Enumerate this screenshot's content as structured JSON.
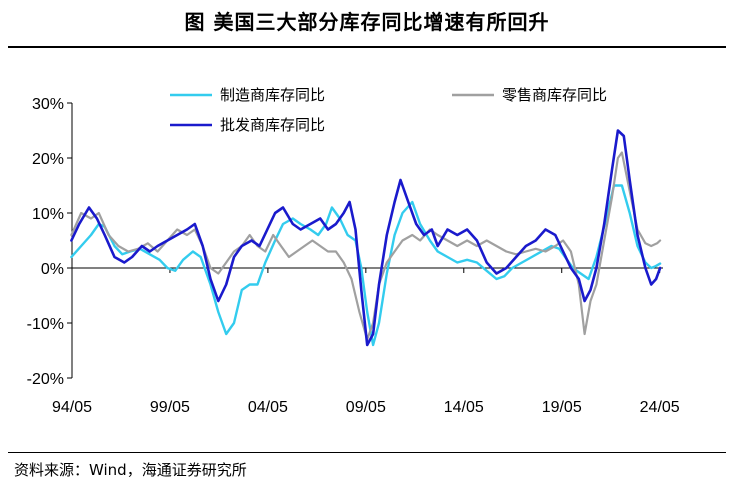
{
  "header": {
    "title": "图  美国三大部分库存同比增速有所回升"
  },
  "footer": {
    "source": "资料来源：Wind，海通证券研究所"
  },
  "colors": {
    "manufacturing": "#33ccee",
    "retail": "#a0a0a0",
    "wholesale": "#1a1acc",
    "axis": "#000000"
  },
  "chart_data": {
    "type": "line",
    "title": "美国三大部分库存同比增速有所回升",
    "xlabel": "",
    "ylabel": "",
    "ylim": [
      -20,
      30
    ],
    "xlim": [
      1994.33,
      2024.5
    ],
    "yticks": [
      -20,
      -10,
      0,
      10,
      20,
      30
    ],
    "ytick_labels": [
      "-20%",
      "-10%",
      "0%",
      "10%",
      "20%",
      "30%"
    ],
    "xticks": [
      1994.33,
      1999.33,
      2004.33,
      2009.33,
      2014.33,
      2019.33,
      2024.33
    ],
    "xtick_labels": [
      "94/05",
      "99/05",
      "04/05",
      "09/05",
      "14/05",
      "19/05",
      "24/05"
    ],
    "grid": false,
    "legend_position": "top",
    "series": [
      {
        "name": "制造商库存同比",
        "color_key": "manufacturing",
        "points": [
          [
            1994.3,
            2
          ],
          [
            1994.8,
            4
          ],
          [
            1995.3,
            6
          ],
          [
            1995.7,
            8
          ],
          [
            1996.0,
            7.5
          ],
          [
            1996.5,
            4
          ],
          [
            1996.9,
            2.5
          ],
          [
            1997.3,
            3
          ],
          [
            1997.8,
            3.5
          ],
          [
            1998.3,
            2.5
          ],
          [
            1998.8,
            1.5
          ],
          [
            1999.2,
            0
          ],
          [
            1999.6,
            -0.5
          ],
          [
            2000.0,
            1.5
          ],
          [
            2000.5,
            3
          ],
          [
            2000.9,
            2
          ],
          [
            2001.4,
            -3
          ],
          [
            2001.8,
            -8
          ],
          [
            2002.2,
            -12
          ],
          [
            2002.6,
            -10
          ],
          [
            2003.0,
            -4
          ],
          [
            2003.4,
            -3
          ],
          [
            2003.8,
            -3
          ],
          [
            2004.2,
            1
          ],
          [
            2004.7,
            5
          ],
          [
            2005.1,
            8
          ],
          [
            2005.6,
            9
          ],
          [
            2006.0,
            8
          ],
          [
            2006.5,
            7
          ],
          [
            2006.9,
            6
          ],
          [
            2007.3,
            8
          ],
          [
            2007.6,
            11
          ],
          [
            2008.0,
            9
          ],
          [
            2008.4,
            6
          ],
          [
            2008.8,
            5
          ],
          [
            2009.1,
            0
          ],
          [
            2009.4,
            -8
          ],
          [
            2009.7,
            -14
          ],
          [
            2010.0,
            -10
          ],
          [
            2010.4,
            -1
          ],
          [
            2010.8,
            6
          ],
          [
            2011.2,
            10
          ],
          [
            2011.7,
            12
          ],
          [
            2012.1,
            8
          ],
          [
            2012.6,
            5
          ],
          [
            2013.0,
            3
          ],
          [
            2013.5,
            2
          ],
          [
            2014.0,
            1
          ],
          [
            2014.5,
            1.5
          ],
          [
            2015.0,
            1
          ],
          [
            2015.5,
            -0.5
          ],
          [
            2016.0,
            -2
          ],
          [
            2016.4,
            -1.5
          ],
          [
            2016.8,
            0
          ],
          [
            2017.3,
            1
          ],
          [
            2017.8,
            2
          ],
          [
            2018.3,
            3
          ],
          [
            2018.8,
            4
          ],
          [
            2019.2,
            3.5
          ],
          [
            2019.5,
            2
          ],
          [
            2019.9,
            0
          ],
          [
            2020.3,
            -1
          ],
          [
            2020.7,
            -2
          ],
          [
            2021.1,
            2
          ],
          [
            2021.6,
            9
          ],
          [
            2022.0,
            15
          ],
          [
            2022.4,
            15
          ],
          [
            2022.8,
            10
          ],
          [
            2023.2,
            4
          ],
          [
            2023.6,
            1
          ],
          [
            2023.9,
            0
          ],
          [
            2024.1,
            0.3
          ],
          [
            2024.35,
            0.8
          ]
        ]
      },
      {
        "name": "零售商库存同比",
        "color_key": "retail",
        "points": [
          [
            1994.3,
            6
          ],
          [
            1994.8,
            10
          ],
          [
            1995.3,
            9
          ],
          [
            1995.7,
            10
          ],
          [
            1996.2,
            6
          ],
          [
            1996.7,
            4
          ],
          [
            1997.2,
            3
          ],
          [
            1997.7,
            3.5
          ],
          [
            1998.2,
            4.5
          ],
          [
            1998.7,
            3
          ],
          [
            1999.2,
            5
          ],
          [
            1999.7,
            7
          ],
          [
            2000.2,
            6
          ],
          [
            2000.6,
            7
          ],
          [
            2001.0,
            4
          ],
          [
            2001.4,
            0
          ],
          [
            2001.8,
            -1
          ],
          [
            2002.2,
            1
          ],
          [
            2002.6,
            3
          ],
          [
            2003.0,
            4
          ],
          [
            2003.4,
            6
          ],
          [
            2003.8,
            4
          ],
          [
            2004.2,
            3
          ],
          [
            2004.6,
            6
          ],
          [
            2005.0,
            4
          ],
          [
            2005.4,
            2
          ],
          [
            2005.8,
            3
          ],
          [
            2006.2,
            4
          ],
          [
            2006.6,
            5
          ],
          [
            2007.0,
            4
          ],
          [
            2007.4,
            3
          ],
          [
            2007.8,
            3
          ],
          [
            2008.2,
            1
          ],
          [
            2008.6,
            -2
          ],
          [
            2009.0,
            -8
          ],
          [
            2009.4,
            -13
          ],
          [
            2009.7,
            -10
          ],
          [
            2010.0,
            -3
          ],
          [
            2010.4,
            1
          ],
          [
            2010.8,
            3
          ],
          [
            2011.2,
            5
          ],
          [
            2011.7,
            6
          ],
          [
            2012.1,
            5
          ],
          [
            2012.6,
            7
          ],
          [
            2013.0,
            6
          ],
          [
            2013.5,
            5
          ],
          [
            2014.0,
            4
          ],
          [
            2014.5,
            5
          ],
          [
            2015.0,
            4
          ],
          [
            2015.5,
            5
          ],
          [
            2016.0,
            4
          ],
          [
            2016.5,
            3
          ],
          [
            2017.0,
            2.5
          ],
          [
            2017.5,
            3
          ],
          [
            2018.0,
            3.5
          ],
          [
            2018.5,
            3
          ],
          [
            2019.0,
            4
          ],
          [
            2019.4,
            5
          ],
          [
            2019.8,
            3
          ],
          [
            2020.2,
            -3
          ],
          [
            2020.5,
            -12
          ],
          [
            2020.8,
            -6
          ],
          [
            2021.1,
            -3
          ],
          [
            2021.5,
            5
          ],
          [
            2021.9,
            13
          ],
          [
            2022.2,
            20
          ],
          [
            2022.4,
            21
          ],
          [
            2022.8,
            14
          ],
          [
            2023.2,
            7
          ],
          [
            2023.6,
            4.5
          ],
          [
            2023.9,
            4
          ],
          [
            2024.2,
            4.5
          ],
          [
            2024.35,
            5
          ]
        ]
      },
      {
        "name": "批发商库存同比",
        "color_key": "wholesale",
        "points": [
          [
            1994.3,
            5
          ],
          [
            1994.7,
            8
          ],
          [
            1995.2,
            11
          ],
          [
            1995.6,
            9
          ],
          [
            1996.0,
            6
          ],
          [
            1996.5,
            2
          ],
          [
            1997.0,
            1
          ],
          [
            1997.4,
            2
          ],
          [
            1997.9,
            4
          ],
          [
            1998.3,
            3
          ],
          [
            1998.7,
            4
          ],
          [
            1999.2,
            5
          ],
          [
            1999.7,
            6
          ],
          [
            2000.2,
            7
          ],
          [
            2000.6,
            8
          ],
          [
            2001.0,
            4
          ],
          [
            2001.4,
            -2
          ],
          [
            2001.8,
            -6
          ],
          [
            2002.2,
            -3
          ],
          [
            2002.6,
            2
          ],
          [
            2003.0,
            4
          ],
          [
            2003.5,
            5
          ],
          [
            2003.9,
            4
          ],
          [
            2004.3,
            7
          ],
          [
            2004.7,
            10
          ],
          [
            2005.1,
            11
          ],
          [
            2005.6,
            8
          ],
          [
            2006.0,
            7
          ],
          [
            2006.5,
            8
          ],
          [
            2007.0,
            9
          ],
          [
            2007.4,
            7
          ],
          [
            2007.8,
            8
          ],
          [
            2008.2,
            10
          ],
          [
            2008.5,
            12
          ],
          [
            2008.8,
            7
          ],
          [
            2009.1,
            -4
          ],
          [
            2009.4,
            -14
          ],
          [
            2009.7,
            -12
          ],
          [
            2010.0,
            -3
          ],
          [
            2010.4,
            6
          ],
          [
            2010.8,
            12
          ],
          [
            2011.1,
            16
          ],
          [
            2011.5,
            12
          ],
          [
            2011.9,
            8
          ],
          [
            2012.3,
            6
          ],
          [
            2012.7,
            7
          ],
          [
            2013.0,
            4
          ],
          [
            2013.5,
            7
          ],
          [
            2014.0,
            6
          ],
          [
            2014.5,
            7
          ],
          [
            2015.0,
            5
          ],
          [
            2015.5,
            1
          ],
          [
            2016.0,
            -1
          ],
          [
            2016.5,
            0
          ],
          [
            2017.0,
            2
          ],
          [
            2017.5,
            4
          ],
          [
            2018.0,
            5
          ],
          [
            2018.5,
            7
          ],
          [
            2019.0,
            6
          ],
          [
            2019.4,
            3
          ],
          [
            2019.8,
            0
          ],
          [
            2020.2,
            -2
          ],
          [
            2020.5,
            -6
          ],
          [
            2020.8,
            -4
          ],
          [
            2021.1,
            0
          ],
          [
            2021.5,
            8
          ],
          [
            2021.9,
            18
          ],
          [
            2022.2,
            25
          ],
          [
            2022.5,
            24
          ],
          [
            2022.8,
            16
          ],
          [
            2023.2,
            6
          ],
          [
            2023.6,
            0
          ],
          [
            2023.9,
            -3
          ],
          [
            2024.15,
            -2
          ],
          [
            2024.35,
            0
          ]
        ]
      }
    ]
  }
}
